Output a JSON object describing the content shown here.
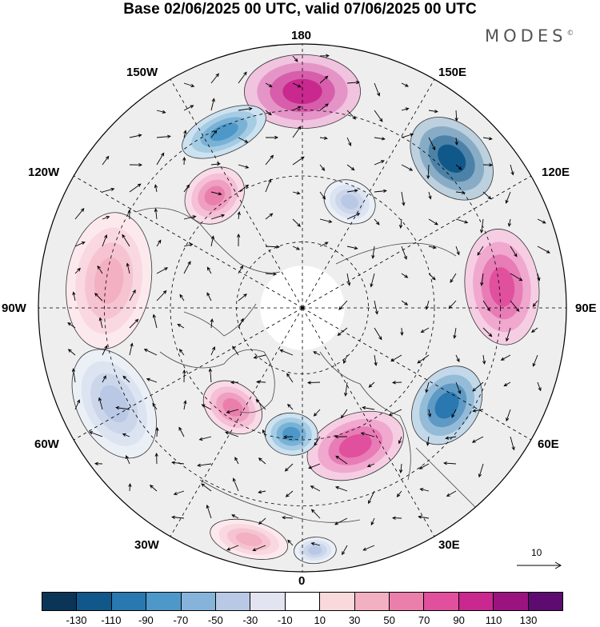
{
  "title": "Base 02/06/2025 00 UTC, valid 07/06/2025 00 UTC",
  "brand": "MODES",
  "brand_mark": "©",
  "longitude_labels": {
    "top": "180",
    "bottom": "0",
    "left": "90W",
    "right": "90E",
    "upper_left_1": "150W",
    "upper_left_2": "120W",
    "upper_right_1": "150E",
    "upper_right_2": "120E",
    "lower_left_1": "60W",
    "lower_left_2": "30W",
    "lower_right_1": "60E",
    "lower_right_2": "30E"
  },
  "reference_vector": {
    "label": "10"
  },
  "colorbar": {
    "colors": [
      "#0b3556",
      "#10588a",
      "#2978b0",
      "#4d98c8",
      "#86b3da",
      "#b9c8e4",
      "#e3e4f1",
      "#ffffff",
      "#f9d9dc",
      "#f3b0c2",
      "#ea7fac",
      "#e0509d",
      "#c9288e",
      "#9a137e",
      "#5d0b70"
    ],
    "tick_labels": [
      "-130",
      "-110",
      "-90",
      "-70",
      "-50",
      "-30",
      "-10",
      "10",
      "30",
      "50",
      "70",
      "90",
      "110",
      "130"
    ]
  },
  "map": {
    "projection": "north polar stereographic",
    "anomaly_features": [
      {
        "sign": "positive",
        "color": "#c9288e",
        "bearing": 180,
        "r": 0.82,
        "a": 0.22,
        "b": 0.14
      },
      {
        "sign": "negative",
        "color": "#10588a",
        "bearing": 135,
        "r": 0.8,
        "a": 0.18,
        "b": 0.13
      },
      {
        "sign": "positive",
        "color": "#e0509d",
        "bearing": 96,
        "r": 0.76,
        "a": 0.22,
        "b": 0.14
      },
      {
        "sign": "negative",
        "color": "#2978b0",
        "bearing": 56,
        "r": 0.66,
        "a": 0.16,
        "b": 0.12
      },
      {
        "sign": "positive",
        "color": "#e0509d",
        "bearing": 21,
        "r": 0.56,
        "a": 0.19,
        "b": 0.12
      },
      {
        "sign": "negative",
        "color": "#4d98c8",
        "bearing": 355,
        "r": 0.48,
        "a": 0.1,
        "b": 0.08
      },
      {
        "sign": "positive",
        "color": "#ea7fac",
        "bearing": 325,
        "r": 0.46,
        "a": 0.12,
        "b": 0.09
      },
      {
        "sign": "negative",
        "color": "#b9c8e4",
        "bearing": 297,
        "r": 0.8,
        "a": 0.22,
        "b": 0.14
      },
      {
        "sign": "positive",
        "color": "#f3b0c2",
        "bearing": 262,
        "r": 0.74,
        "a": 0.26,
        "b": 0.16
      },
      {
        "sign": "positive",
        "color": "#ea7fac",
        "bearing": 218,
        "r": 0.54,
        "a": 0.12,
        "b": 0.1
      },
      {
        "sign": "negative",
        "color": "#4d98c8",
        "bearing": 204,
        "r": 0.73,
        "a": 0.17,
        "b": 0.08
      },
      {
        "sign": "negative",
        "color": "#b9c8e4",
        "bearing": 156,
        "r": 0.44,
        "a": 0.1,
        "b": 0.08
      },
      {
        "sign": "positive",
        "color": "#f3b0c2",
        "bearing": 347,
        "r": 0.9,
        "a": 0.15,
        "b": 0.07
      },
      {
        "sign": "negative",
        "color": "#b9c8e4",
        "bearing": 3,
        "r": 0.92,
        "a": 0.08,
        "b": 0.05
      }
    ]
  }
}
